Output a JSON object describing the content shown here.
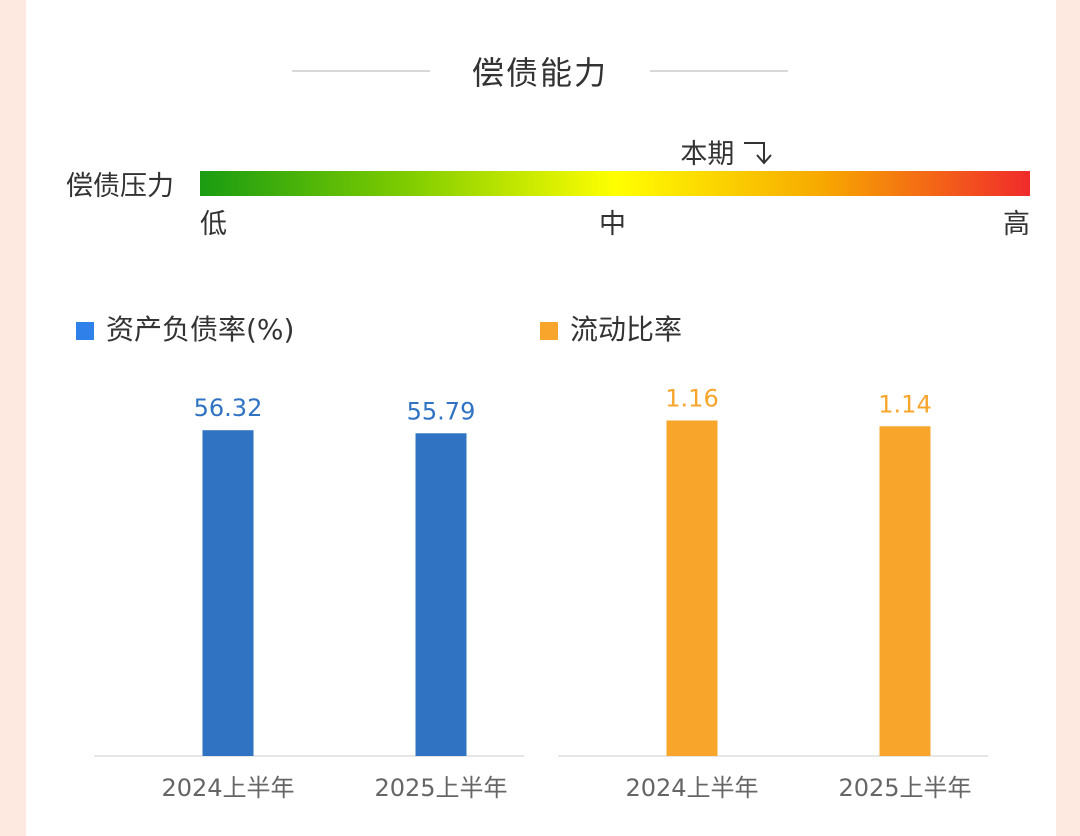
{
  "section": {
    "title": "偿债能力"
  },
  "gauge": {
    "label": "偿债压力",
    "low": "低",
    "mid": "中",
    "high": "高",
    "current_label": "本期",
    "current_level": 0.68
  },
  "colors": {
    "blue": "#3073c2",
    "orange": "#f8a52c",
    "blue_legend": "#2f80e8"
  },
  "chart_data": [
    {
      "type": "bar",
      "title": "资产负债率(%)",
      "categories": [
        "2024上半年",
        "2025上半年"
      ],
      "values": [
        56.32,
        55.79
      ],
      "value_labels": [
        "56.32",
        "55.79"
      ],
      "ylim": [
        0,
        65
      ],
      "color": "#3073c2",
      "grid": false
    },
    {
      "type": "bar",
      "title": "流动比率",
      "categories": [
        "2024上半年",
        "2025上半年"
      ],
      "values": [
        1.16,
        1.14
      ],
      "value_labels": [
        "1.16",
        "1.14"
      ],
      "ylim": [
        0,
        1.3
      ],
      "color": "#f8a52c",
      "grid": false
    }
  ]
}
